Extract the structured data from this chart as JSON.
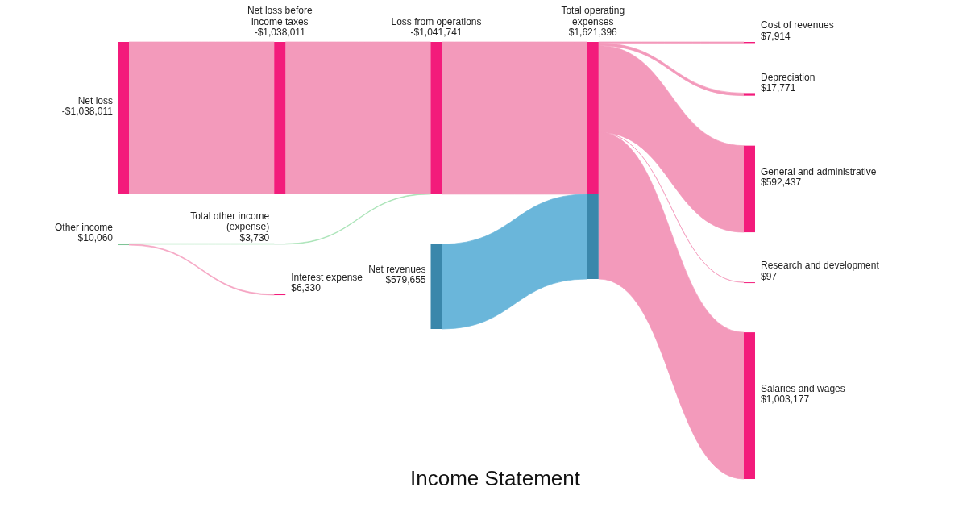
{
  "chart_data": {
    "type": "other",
    "title": "Income Statement",
    "categories": [
      "Net loss",
      "Other income",
      "Net loss before income taxes",
      "Total other income (expense)",
      "Interest expense",
      "Loss from operations",
      "Net revenues",
      "Total operating expenses",
      "Cost of revenues",
      "Depreciation",
      "General and administrative",
      "Research and development",
      "Salaries and wages"
    ],
    "values": [
      -1038011,
      10060,
      -1038011,
      3730,
      6330,
      -1041741,
      579655,
      1621396,
      7914,
      17771,
      592437,
      97,
      1003177
    ],
    "value_labels": [
      "-$1,038,011",
      "$10,060",
      "-$1,038,011",
      "$3,730",
      "$6,330",
      "-$1,041,741",
      "$579,655",
      "$1,621,396",
      "$7,914",
      "$17,771",
      "$592,437",
      "$97",
      "$1,003,177"
    ],
    "colors": [
      "#f31b7b",
      "#7fc496",
      "#f31b7b",
      "#7fc496",
      "#f31b7b",
      "#f31b7b",
      "#3a87ab",
      "#f31b7b",
      "#f31b7b",
      "#f31b7b",
      "#f31b7b",
      "#f31b7b",
      "#f31b7b"
    ],
    "series": [
      {
        "color": "#f39abb",
        "values": [
          true,
          null,
          true,
          null,
          null,
          null,
          null,
          null,
          null,
          null,
          null,
          null,
          null
        ]
      },
      {
        "color": "#a6e3b5",
        "values": [
          null,
          true,
          null,
          true,
          null,
          null,
          null,
          null,
          null,
          null,
          null,
          null,
          null
        ]
      },
      {
        "color": "#f5a3c2",
        "values": [
          null,
          true,
          null,
          null,
          true,
          null,
          null,
          null,
          null,
          null,
          null,
          null,
          null
        ]
      },
      {
        "color": "#f39abb",
        "values": [
          null,
          null,
          true,
          null,
          null,
          true,
          null,
          null,
          null,
          null,
          null,
          null,
          null
        ]
      },
      {
        "color": "#a6e3b5",
        "values": [
          null,
          null,
          null,
          true,
          null,
          true,
          null,
          null,
          null,
          null,
          null,
          null,
          null
        ]
      },
      {
        "color": "#f39abb",
        "values": [
          null,
          null,
          null,
          null,
          null,
          true,
          null,
          true,
          null,
          null,
          null,
          null,
          null
        ]
      },
      {
        "color": "#6ab6da",
        "values": [
          null,
          null,
          null,
          null,
          null,
          null,
          true,
          true,
          null,
          null,
          null,
          null,
          null
        ]
      },
      {
        "color": "#f39abb",
        "values": [
          null,
          null,
          null,
          null,
          null,
          null,
          null,
          true,
          true,
          null,
          null,
          null,
          null
        ]
      },
      {
        "color": "#f39abb",
        "values": [
          null,
          null,
          null,
          null,
          null,
          null,
          null,
          true,
          null,
          true,
          null,
          null,
          null
        ]
      },
      {
        "color": "#f39abb",
        "values": [
          null,
          null,
          null,
          null,
          null,
          null,
          null,
          true,
          null,
          null,
          true,
          null,
          null
        ]
      },
      {
        "color": "#f39abb",
        "values": [
          null,
          null,
          null,
          null,
          null,
          null,
          null,
          true,
          null,
          null,
          null,
          true,
          null
        ]
      },
      {
        "color": "#f39abb",
        "values": [
          null,
          null,
          null,
          null,
          null,
          null,
          null,
          true,
          null,
          null,
          null,
          null,
          true
        ]
      }
    ]
  }
}
